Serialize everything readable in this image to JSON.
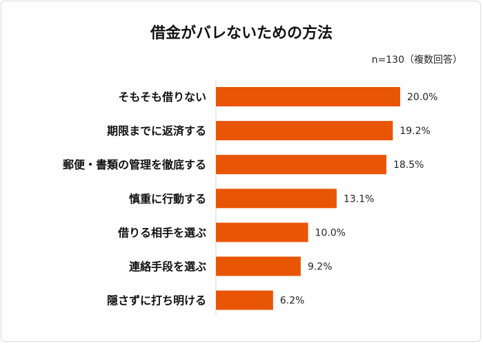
{
  "chart_data": {
    "type": "bar",
    "orientation": "horizontal",
    "title": "借金がバレないための方法",
    "note": "n=130（複数回答）",
    "categories": [
      "そもそも借りない",
      "期限までに返済する",
      "郵便・書類の管理を徹底する",
      "慎重に行動する",
      "借りる相手を選ぶ",
      "連絡手段を選ぶ",
      "隠さずに打ち明ける"
    ],
    "values": [
      20.0,
      19.2,
      18.5,
      13.1,
      10.0,
      9.2,
      6.2
    ],
    "value_labels": [
      "20.0%",
      "19.2%",
      "18.5%",
      "13.1%",
      "10.0%",
      "9.2%",
      "6.2%"
    ],
    "unit": "%",
    "xlim": [
      0,
      20
    ],
    "grid": false,
    "bar_color": "#E85504"
  }
}
